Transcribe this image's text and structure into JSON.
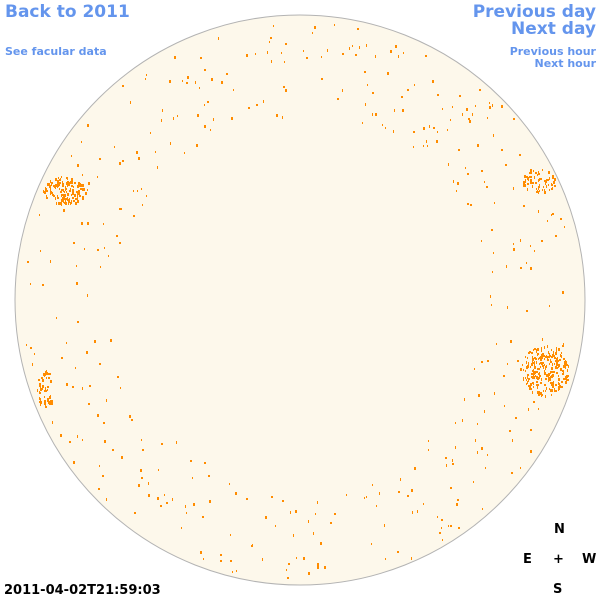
{
  "colors": {
    "link": "#6495ed",
    "disk_fill": "#fdf8eb",
    "disk_stroke": "#b3b3b3",
    "facula": "#ff8c00",
    "text": "#000000"
  },
  "nav": {
    "back_label": "Back to 2011",
    "facular_label": "See facular data",
    "prev_day_label": "Previous day",
    "next_day_label": "Next day",
    "prev_hour_label": "Previous hour",
    "next_hour_label": "Next hour"
  },
  "compass": {
    "north": "N",
    "east": "E",
    "center": "+",
    "west": "W",
    "south": "S"
  },
  "timestamp": "2011-04-02T21:59:03"
}
